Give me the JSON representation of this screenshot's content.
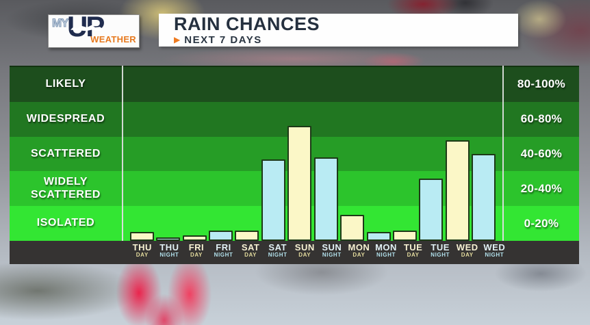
{
  "header": {
    "logo": {
      "my": "MY",
      "up": "UP",
      "weather": "WEATHER"
    },
    "banner": {
      "title": "RAIN CHANCES",
      "arrow": "▶",
      "subtitle": "NEXT 7 DAYS"
    }
  },
  "chart_data": {
    "type": "bar",
    "title": "RAIN CHANCES",
    "subtitle": "NEXT 7 DAYS",
    "units": "%",
    "ylim": [
      0,
      100
    ],
    "band_size": 20,
    "left_band_labels": [
      "LIKELY",
      "WIDESPREAD",
      "SCATTERED",
      "WIDELY SCATTERED",
      "ISOLATED"
    ],
    "right_band_labels": [
      "80-100%",
      "60-80%",
      "40-60%",
      "20-40%",
      "0-20%"
    ],
    "band_colors": [
      "#1d4e1d",
      "#217721",
      "#269d26",
      "#2cc42c",
      "#33e633"
    ],
    "bar_colors": {
      "day": "#fbf7c7",
      "night": "#b9ebf3",
      "border": "#1d3a17"
    },
    "bars": [
      {
        "label": "THU",
        "sublabel": "DAY",
        "type": "day",
        "value": 5
      },
      {
        "label": "THU",
        "sublabel": "NIGHT",
        "type": "night",
        "value": 2
      },
      {
        "label": "FRI",
        "sublabel": "DAY",
        "type": "day",
        "value": 3
      },
      {
        "label": "FRI",
        "sublabel": "NIGHT",
        "type": "night",
        "value": 6
      },
      {
        "label": "SAT",
        "sublabel": "DAY",
        "type": "day",
        "value": 6
      },
      {
        "label": "SAT",
        "sublabel": "NIGHT",
        "type": "night",
        "value": 47
      },
      {
        "label": "SUN",
        "sublabel": "DAY",
        "type": "day",
        "value": 66
      },
      {
        "label": "SUN",
        "sublabel": "NIGHT",
        "type": "night",
        "value": 48
      },
      {
        "label": "MON",
        "sublabel": "DAY",
        "type": "day",
        "value": 15
      },
      {
        "label": "MON",
        "sublabel": "NIGHT",
        "type": "night",
        "value": 5
      },
      {
        "label": "TUE",
        "sublabel": "DAY",
        "type": "day",
        "value": 6
      },
      {
        "label": "TUE",
        "sublabel": "NIGHT",
        "type": "night",
        "value": 36
      },
      {
        "label": "WED",
        "sublabel": "DAY",
        "type": "day",
        "value": 58
      },
      {
        "label": "WED",
        "sublabel": "NIGHT",
        "type": "night",
        "value": 50
      }
    ]
  }
}
